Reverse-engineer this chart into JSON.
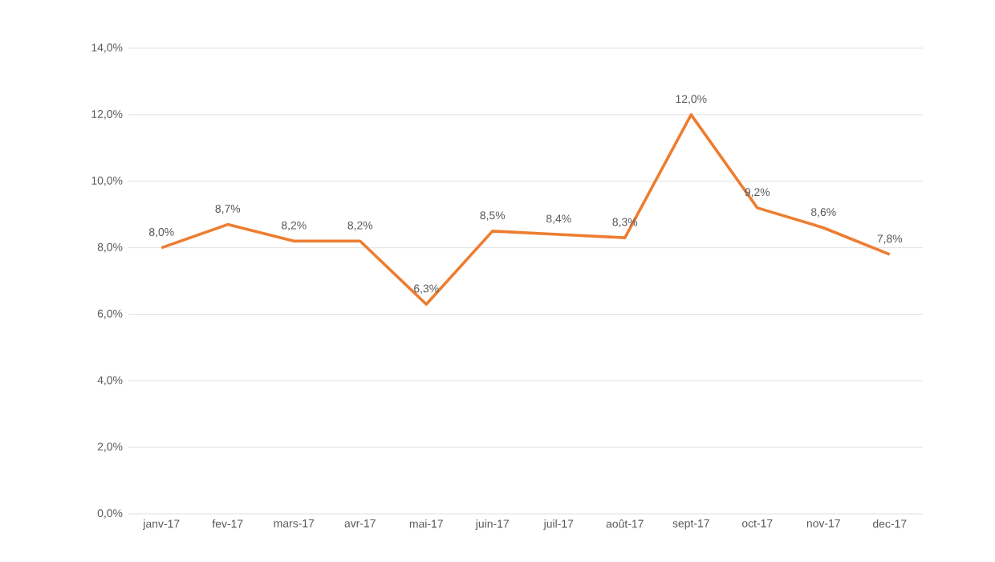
{
  "chart_data": {
    "type": "line",
    "categories": [
      "janv-17",
      "fev-17",
      "mars-17",
      "avr-17",
      "mai-17",
      "juin-17",
      "juil-17",
      "août-17",
      "sept-17",
      "oct-17",
      "nov-17",
      "dec-17"
    ],
    "values": [
      8.0,
      8.7,
      8.2,
      8.2,
      6.3,
      8.5,
      8.4,
      8.3,
      12.0,
      9.2,
      8.6,
      7.8
    ],
    "value_labels": [
      "8,0%",
      "8,7%",
      "8,2%",
      "8,2%",
      "6,3%",
      "8,5%",
      "8,4%",
      "8,3%",
      "12,0%",
      "9,2%",
      "8,6%",
      "7,8%"
    ],
    "color": "#ed7d31",
    "ylim": [
      0,
      14
    ],
    "yticks": [
      {
        "value": 0,
        "label": "0,0%"
      },
      {
        "value": 2,
        "label": "2,0%"
      },
      {
        "value": 4,
        "label": "4,0%"
      },
      {
        "value": 6,
        "label": "6,0%"
      },
      {
        "value": 8,
        "label": "8,0%"
      },
      {
        "value": 10,
        "label": "10,0%"
      },
      {
        "value": 12,
        "label": "12,0%"
      },
      {
        "value": 14,
        "label": "14,0%"
      }
    ],
    "grid": "y"
  }
}
